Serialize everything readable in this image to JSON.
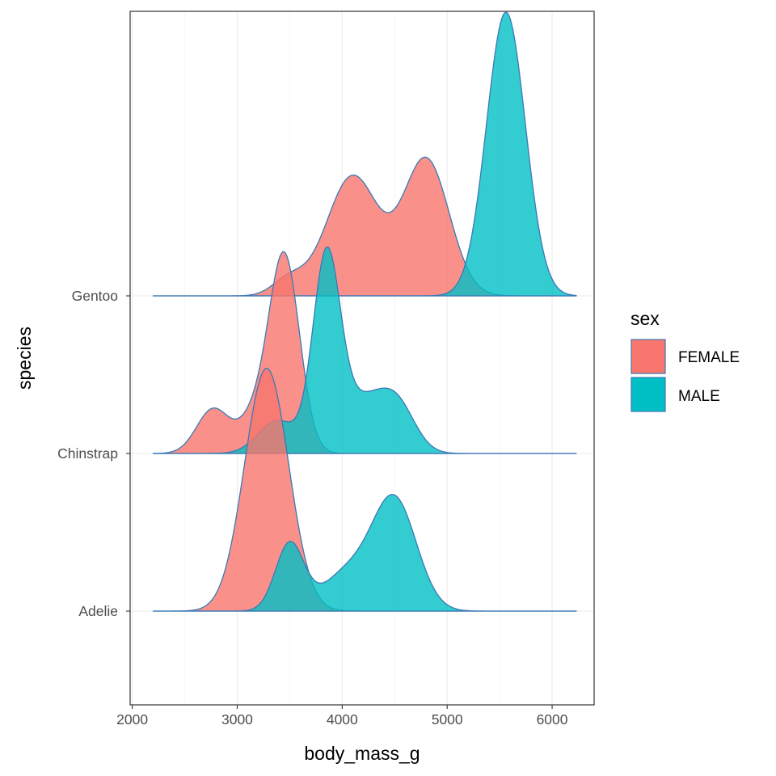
{
  "chart_data": {
    "type": "ridgeline",
    "xlabel": "body_mass_g",
    "ylabel": "species",
    "xlim": [
      1980,
      6400
    ],
    "x_ticks": [
      2000,
      3000,
      4000,
      5000,
      6000
    ],
    "x_tick_labels": [
      "2000",
      "3000",
      "4000",
      "5000",
      "6000"
    ],
    "categories": [
      "Adelie",
      "Chinstrap",
      "Gentoo"
    ],
    "x_range": [
      2200,
      6230
    ],
    "grid": true,
    "legend": {
      "title": "sex",
      "position": "right",
      "entries": [
        {
          "label": "FEMALE",
          "color": "#F8766D"
        },
        {
          "label": "MALE",
          "color": "#00BFC4"
        }
      ]
    },
    "outline_color": "#3C78B4",
    "series": [
      {
        "category": "Adelie",
        "sex": "FEMALE",
        "color": "#F8766D",
        "components": [
          {
            "mean": 3280,
            "sd": 210,
            "weight": 1
          }
        ],
        "peak_height": 1.54
      },
      {
        "category": "Adelie",
        "sex": "MALE",
        "color": "#00BFC4",
        "components": [
          {
            "mean": 3500,
            "sd": 135,
            "weight": 0.22
          },
          {
            "mean": 4050,
            "sd": 240,
            "weight": 0.22
          },
          {
            "mean": 4500,
            "sd": 210,
            "weight": 0.56
          }
        ],
        "peak_height": 0.74
      },
      {
        "category": "Chinstrap",
        "sex": "FEMALE",
        "color": "#F8766D",
        "components": [
          {
            "mean": 2770,
            "sd": 155,
            "weight": 0.17
          },
          {
            "mean": 3170,
            "sd": 150,
            "weight": 0.13
          },
          {
            "mean": 3450,
            "sd": 145,
            "weight": 0.7
          }
        ],
        "peak_height": 1.28
      },
      {
        "category": "Chinstrap",
        "sex": "MALE",
        "color": "#00BFC4",
        "components": [
          {
            "mean": 3380,
            "sd": 180,
            "weight": 0.12
          },
          {
            "mean": 3850,
            "sd": 130,
            "weight": 0.5
          },
          {
            "mean": 4200,
            "sd": 230,
            "weight": 0.24
          },
          {
            "mean": 4530,
            "sd": 170,
            "weight": 0.14
          }
        ],
        "peak_height": 1.31
      },
      {
        "category": "Gentoo",
        "sex": "FEMALE",
        "color": "#F8766D",
        "components": [
          {
            "mean": 3490,
            "sd": 150,
            "weight": 0.04
          },
          {
            "mean": 4100,
            "sd": 250,
            "weight": 0.48
          },
          {
            "mean": 4800,
            "sd": 220,
            "weight": 0.48
          }
        ],
        "peak_height": 0.88
      },
      {
        "category": "Gentoo",
        "sex": "MALE",
        "color": "#00BFC4",
        "components": [
          {
            "mean": 5560,
            "sd": 185,
            "weight": 1
          }
        ],
        "peak_height": 1.8
      }
    ]
  }
}
